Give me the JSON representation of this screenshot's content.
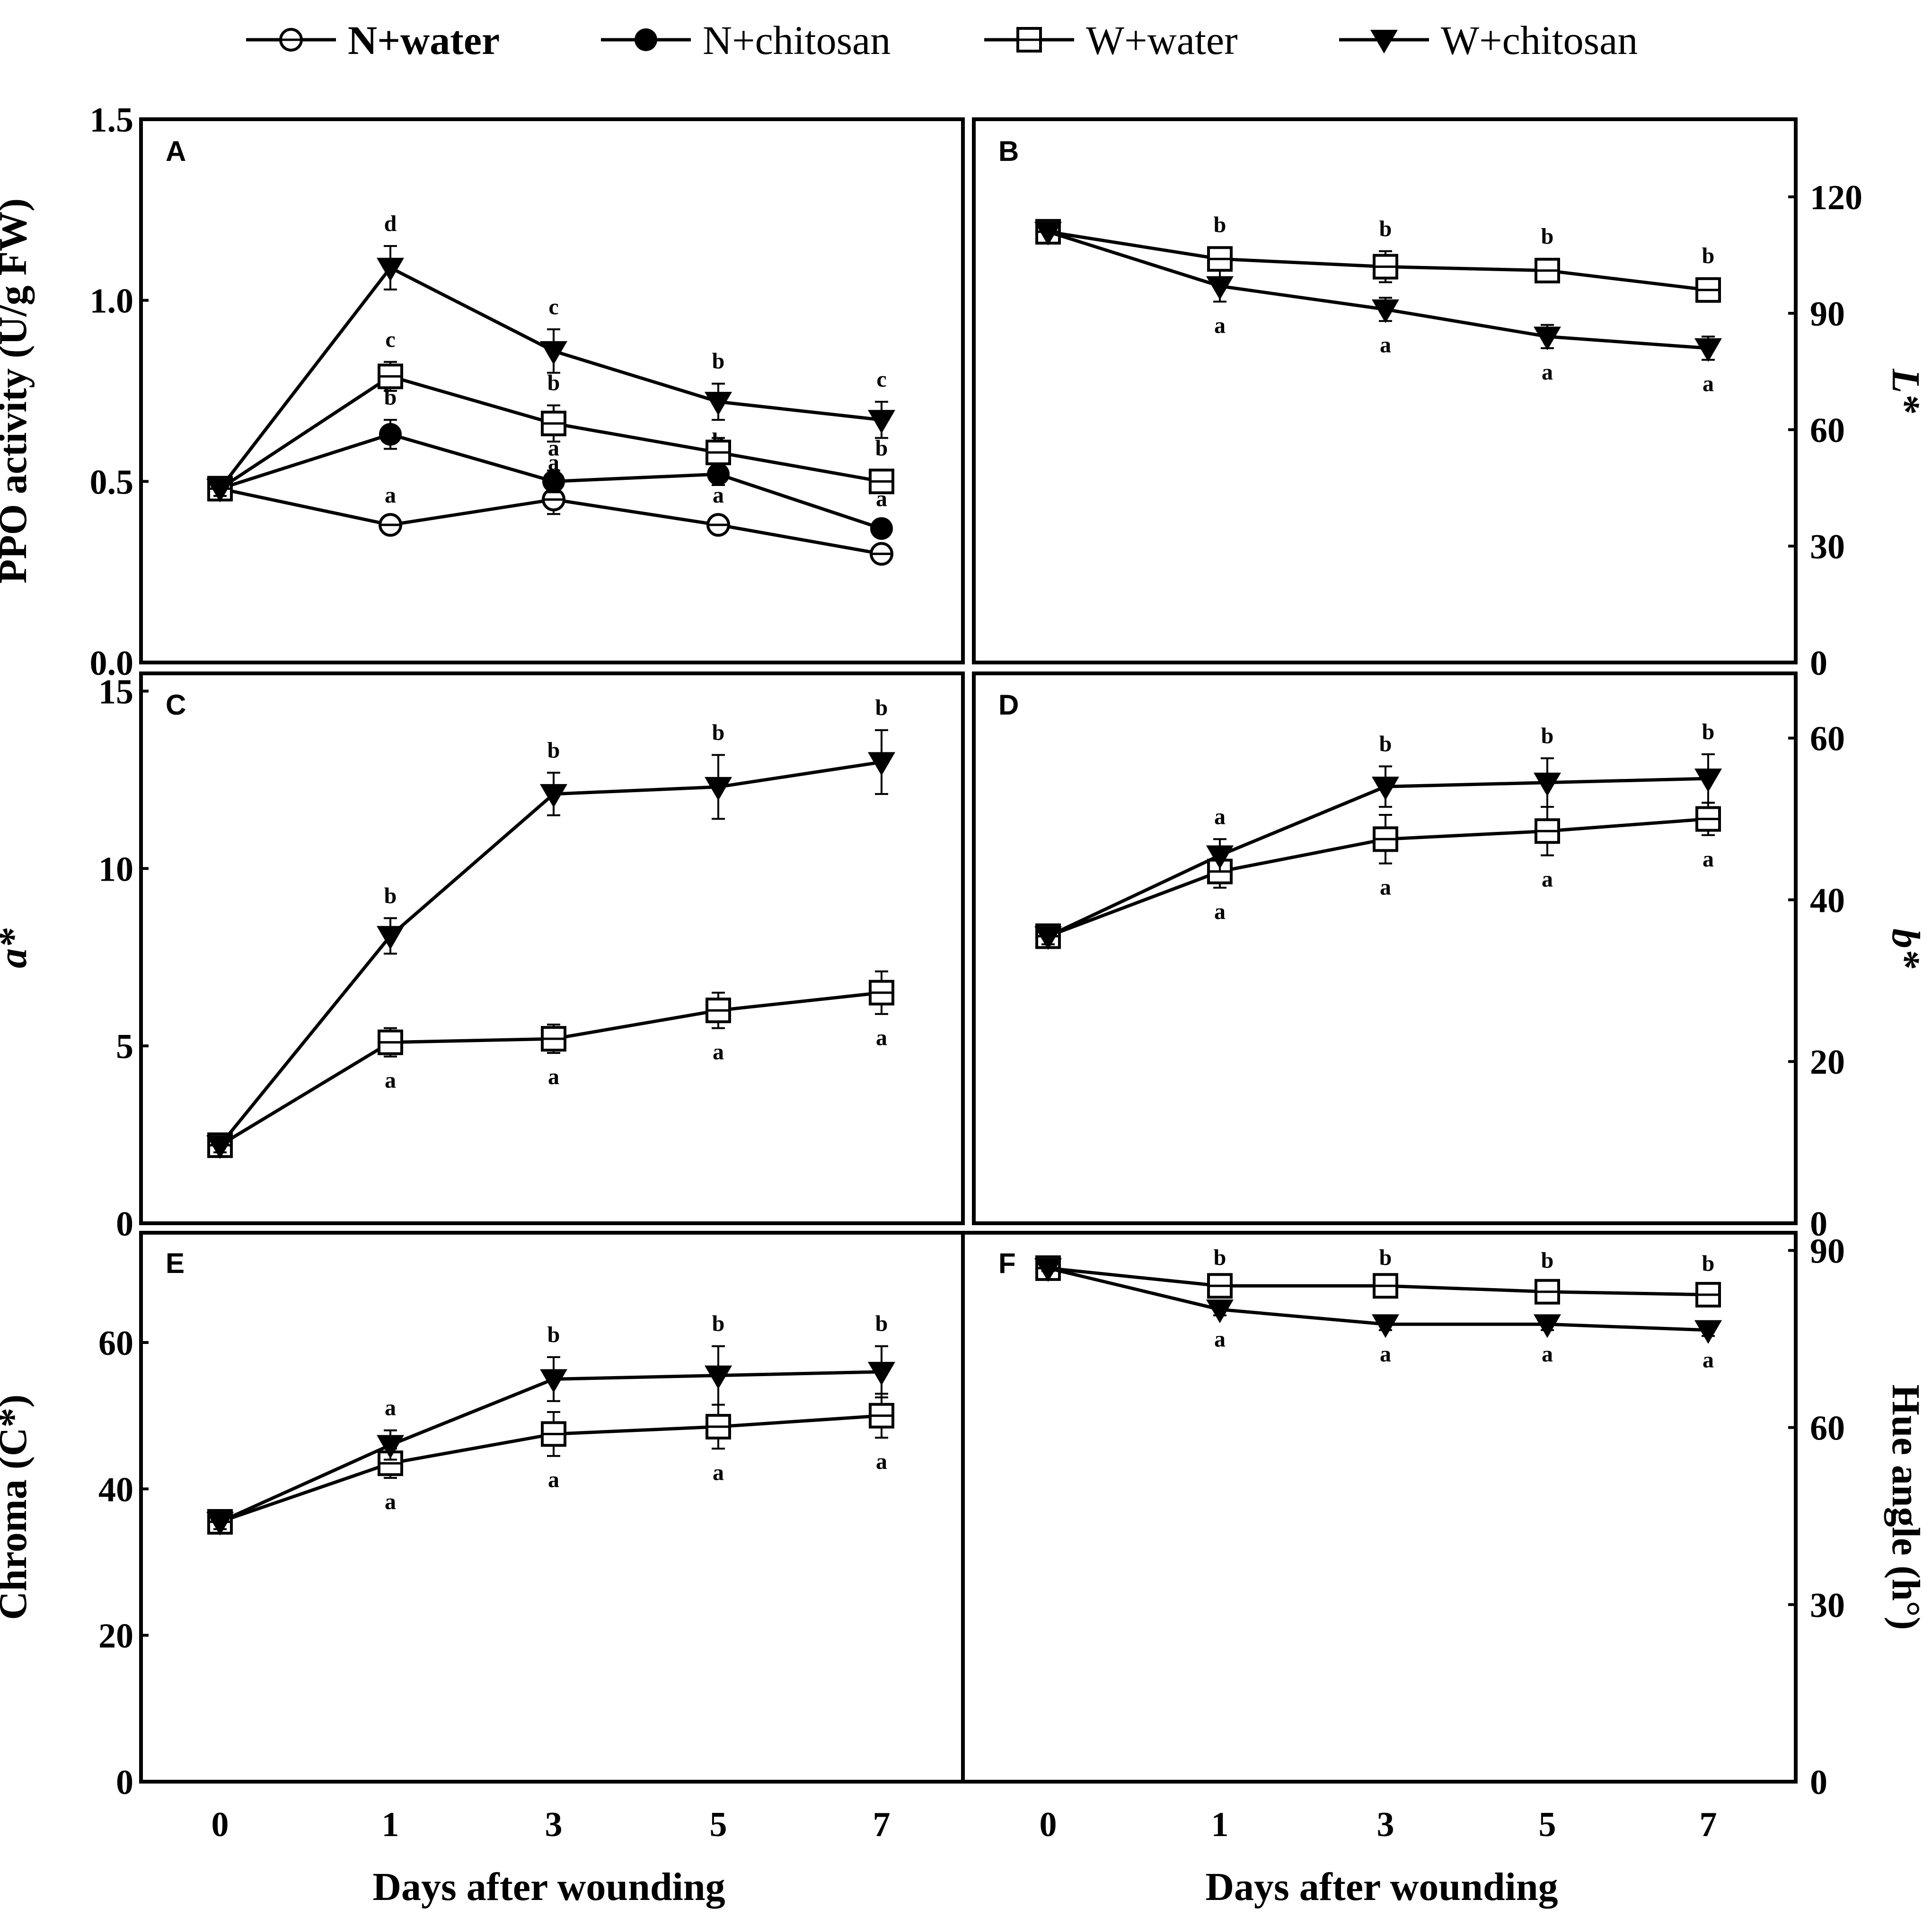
{
  "legend": [
    {
      "key": "n_water",
      "label": "N+water",
      "marker": "circle-open"
    },
    {
      "key": "n_chitosan",
      "label": "N+chitosan",
      "marker": "circle-filled"
    },
    {
      "key": "w_water",
      "label": "W+water",
      "marker": "square-open"
    },
    {
      "key": "w_chitosan",
      "label": "W+chitosan",
      "marker": "triangle-down-filled"
    }
  ],
  "x_labels": [
    "Days after wounding",
    "Days after wounding"
  ],
  "chart_data": [
    {
      "panel": "A",
      "type": "line",
      "ylabel": "PPO activity (U/g FW)",
      "y_side": "left",
      "ylim": [
        0,
        1.5
      ],
      "yticks": [
        "0.0",
        "0.5",
        "1.0",
        "1.5"
      ],
      "categories": [
        "0",
        "1",
        "3",
        "5",
        "7"
      ],
      "series": [
        {
          "key": "n_water",
          "name": "N+water",
          "values": [
            0.48,
            0.38,
            0.45,
            0.38,
            0.3
          ],
          "errors": [
            0.02,
            0.02,
            0.04,
            0.02,
            0.02
          ],
          "labels": [
            "",
            "a",
            "a",
            "a",
            ""
          ]
        },
        {
          "key": "n_chitosan",
          "name": "N+chitosan",
          "values": [
            0.48,
            0.63,
            0.5,
            0.52,
            0.37
          ],
          "errors": [
            0.02,
            0.04,
            0.03,
            0.03,
            0.02
          ],
          "labels": [
            "",
            "b",
            "a",
            "b",
            "a"
          ]
        },
        {
          "key": "w_water",
          "name": "W+water",
          "values": [
            0.48,
            0.79,
            0.66,
            0.58,
            0.5
          ],
          "errors": [
            0.02,
            0.04,
            0.05,
            0.04,
            0.03
          ],
          "labels": [
            "",
            "c",
            "b",
            "",
            "b"
          ]
        },
        {
          "key": "w_chitosan",
          "name": "W+chitosan",
          "values": [
            0.48,
            1.09,
            0.86,
            0.72,
            0.67
          ],
          "errors": [
            0.02,
            0.06,
            0.06,
            0.05,
            0.05
          ],
          "labels": [
            "",
            "d",
            "c",
            "b",
            "c"
          ]
        }
      ]
    },
    {
      "panel": "B",
      "type": "line",
      "ylabel": "L*",
      "y_side": "right",
      "ylim": [
        0,
        140
      ],
      "yticks": [
        "0",
        "30",
        "60",
        "90",
        "120"
      ],
      "categories": [
        "0",
        "1",
        "3",
        "5",
        "7"
      ],
      "series": [
        {
          "key": "w_water",
          "name": "W+water",
          "values": [
            111,
            104,
            102,
            101,
            96
          ],
          "errors": [
            3,
            3,
            4,
            3,
            3
          ],
          "labels": [
            "",
            "b",
            "b",
            "b",
            "b"
          ]
        },
        {
          "key": "w_chitosan",
          "name": "W+chitosan",
          "values": [
            111,
            97,
            91,
            84,
            81
          ],
          "errors": [
            3,
            4,
            3,
            3,
            3
          ],
          "labels": [
            "",
            "a",
            "a",
            "a",
            "a"
          ]
        }
      ]
    },
    {
      "panel": "C",
      "type": "line",
      "ylabel": "a*",
      "y_side": "left",
      "ylim": [
        0,
        15.5
      ],
      "yticks": [
        "0",
        "5",
        "10",
        "15"
      ],
      "categories": [
        "0",
        "1",
        "3",
        "5",
        "7"
      ],
      "series": [
        {
          "key": "w_water",
          "name": "W+water",
          "values": [
            2.2,
            5.1,
            5.2,
            6.0,
            6.5
          ],
          "errors": [
            0.2,
            0.4,
            0.4,
            0.5,
            0.6
          ],
          "labels": [
            "",
            "a",
            "a",
            "a",
            "a"
          ]
        },
        {
          "key": "w_chitosan",
          "name": "W+chitosan",
          "values": [
            2.2,
            8.1,
            12.1,
            12.3,
            13.0
          ],
          "errors": [
            0.2,
            0.5,
            0.6,
            0.9,
            0.9
          ],
          "labels": [
            "",
            "b",
            "b",
            "b",
            "b"
          ]
        }
      ]
    },
    {
      "panel": "D",
      "type": "line",
      "ylabel": "b*",
      "y_side": "right",
      "ylim": [
        0,
        68
      ],
      "yticks": [
        "0",
        "20",
        "40",
        "60"
      ],
      "categories": [
        "0",
        "1",
        "3",
        "5",
        "7"
      ],
      "series": [
        {
          "key": "w_water",
          "name": "W+water",
          "values": [
            35.5,
            43.5,
            47.5,
            48.5,
            50.0
          ],
          "errors": [
            1.0,
            2.0,
            3.0,
            3.0,
            2.0
          ],
          "labels": [
            "",
            "a",
            "a",
            "a",
            "a"
          ]
        },
        {
          "key": "w_chitosan",
          "name": "W+chitosan",
          "values": [
            35.5,
            45.5,
            54.0,
            54.5,
            55.0
          ],
          "errors": [
            1.0,
            2.0,
            2.5,
            3.0,
            3.0
          ],
          "labels": [
            "",
            "a",
            "b",
            "b",
            "b"
          ]
        }
      ]
    },
    {
      "panel": "E",
      "type": "line",
      "ylabel": "Chroma (C*)",
      "y_side": "left",
      "ylim": [
        0,
        75
      ],
      "yticks": [
        "0",
        "20",
        "40",
        "60"
      ],
      "categories": [
        "0",
        "1",
        "3",
        "5",
        "7"
      ],
      "series": [
        {
          "key": "w_water",
          "name": "W+water",
          "values": [
            35.5,
            43.5,
            47.5,
            48.5,
            50.0
          ],
          "errors": [
            1.0,
            2.0,
            3.0,
            3.0,
            3.0
          ],
          "labels": [
            "",
            "a",
            "a",
            "a",
            "a"
          ]
        },
        {
          "key": "w_chitosan",
          "name": "W+chitosan",
          "values": [
            35.5,
            46.0,
            55.0,
            55.5,
            56.0
          ],
          "errors": [
            1.0,
            2.0,
            3.0,
            4.0,
            3.5
          ],
          "labels": [
            "",
            "a",
            "b",
            "b",
            "b"
          ]
        }
      ]
    },
    {
      "panel": "F",
      "type": "line",
      "ylabel": "Hue angle (h°)",
      "y_side": "right",
      "ylim": [
        0,
        93
      ],
      "yticks": [
        "0",
        "30",
        "60",
        "90"
      ],
      "categories": [
        "0",
        "1",
        "3",
        "5",
        "7"
      ],
      "series": [
        {
          "key": "w_water",
          "name": "W+water",
          "values": [
            87,
            84,
            84,
            83,
            82.5
          ],
          "errors": [
            0.5,
            1.0,
            1.0,
            1.5,
            1.5
          ],
          "labels": [
            "",
            "b",
            "b",
            "b",
            "b"
          ]
        },
        {
          "key": "w_chitosan",
          "name": "W+chitosan",
          "values": [
            87,
            80,
            77.5,
            77.5,
            76.5
          ],
          "errors": [
            0.5,
            1.0,
            1.0,
            1.0,
            1.0
          ],
          "labels": [
            "",
            "a",
            "a",
            "a",
            "a"
          ]
        }
      ]
    }
  ]
}
